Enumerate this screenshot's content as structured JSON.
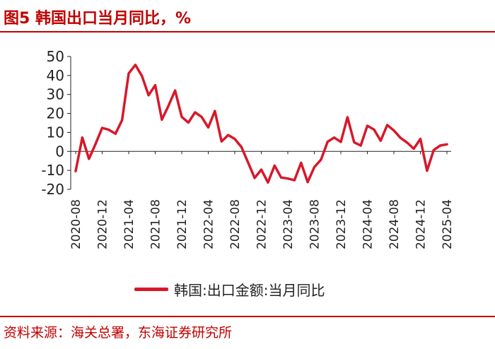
{
  "header": {
    "title": "图5  韩国出口当月同比，%"
  },
  "source": {
    "text": "资料来源：海关总署，东海证券研究所"
  },
  "colors": {
    "accent": "#c00000",
    "series": "#d7182a",
    "axis": "#222222"
  },
  "chart_data": {
    "type": "line",
    "title": "韩国出口当月同比，%",
    "xlabel": "",
    "ylabel": "%",
    "ylim": [
      -20,
      50
    ],
    "yticks": [
      50,
      40,
      30,
      20,
      10,
      0,
      -10,
      -20
    ],
    "ytick_labels": [
      "50",
      "40",
      "30",
      "20",
      "10",
      "0",
      "-10",
      "-20"
    ],
    "grid": false,
    "legend_position": "bottom",
    "x": [
      "2020-08",
      "2020-09",
      "2020-10",
      "2020-11",
      "2020-12",
      "2021-01",
      "2021-02",
      "2021-03",
      "2021-04",
      "2021-05",
      "2021-06",
      "2021-07",
      "2021-08",
      "2021-09",
      "2021-10",
      "2021-11",
      "2021-12",
      "2022-01",
      "2022-02",
      "2022-03",
      "2022-04",
      "2022-05",
      "2022-06",
      "2022-07",
      "2022-08",
      "2022-09",
      "2022-10",
      "2022-11",
      "2022-12",
      "2023-01",
      "2023-02",
      "2023-03",
      "2023-04",
      "2023-05",
      "2023-06",
      "2023-07",
      "2023-08",
      "2023-09",
      "2023-10",
      "2023-11",
      "2023-12",
      "2024-01",
      "2024-02",
      "2024-03",
      "2024-04",
      "2024-05",
      "2024-06",
      "2024-07",
      "2024-08",
      "2024-09",
      "2024-10",
      "2024-11",
      "2024-12",
      "2025-01",
      "2025-02",
      "2025-03",
      "2025-04"
    ],
    "xtick_labels": [
      "2020-08",
      "2020-12",
      "2021-04",
      "2021-08",
      "2021-12",
      "2022-04",
      "2022-08",
      "2022-12",
      "2023-04",
      "2023-08",
      "2023-12",
      "2024-04",
      "2024-08",
      "2024-12",
      "2025-04"
    ],
    "series": [
      {
        "name": "韩国:出口金额:当月同比",
        "values": [
          -10.4,
          7.3,
          -3.9,
          3.9,
          12.4,
          11.4,
          9.3,
          16.4,
          41.1,
          45.6,
          39.7,
          29.6,
          34.9,
          16.7,
          24.1,
          32.1,
          18.2,
          15.2,
          20.6,
          18.2,
          12.6,
          21.3,
          5.2,
          8.6,
          6.6,
          2.3,
          -5.8,
          -14.0,
          -9.6,
          -16.4,
          -7.5,
          -13.8,
          -14.3,
          -15.2,
          -6.0,
          -16.2,
          -8.3,
          -4.4,
          5.1,
          7.3,
          5.0,
          18.0,
          4.8,
          3.1,
          13.5,
          11.5,
          5.6,
          13.9,
          11.0,
          7.1,
          4.6,
          1.4,
          6.6,
          -10.2,
          0.7,
          3.1,
          3.7
        ]
      }
    ]
  }
}
